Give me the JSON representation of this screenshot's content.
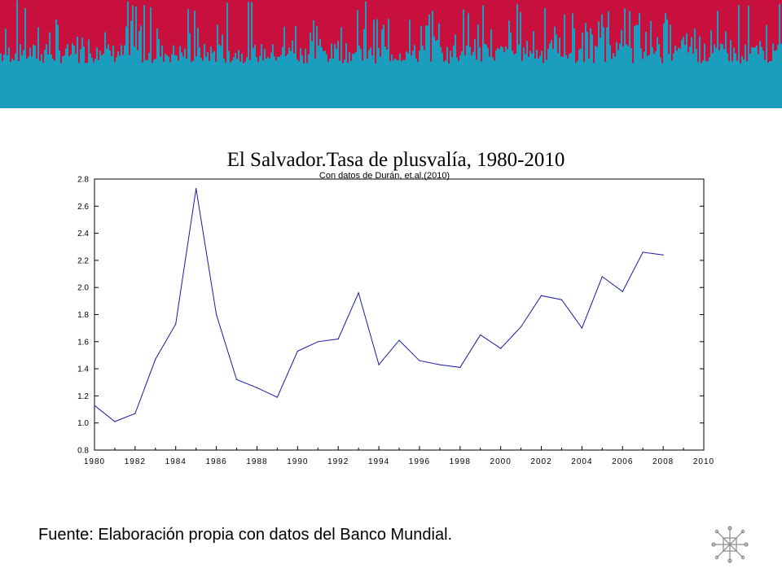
{
  "colors": {
    "banner_red": "#c8103e",
    "banner_teal": "#1b9dbd",
    "series_line": "#1a1a9c",
    "frame": "#000000",
    "logo": "#8a8a8a"
  },
  "logo": {
    "icon": "compass-logo-icon"
  },
  "footer": {
    "text": "Fuente: Elaboración propia con datos del Banco Mundial."
  },
  "chart_data": {
    "type": "line",
    "title": "El Salvador.Tasa de plusvalía, 1980-2010",
    "subtitle": "Con datos de Durán, et.al.(2010)",
    "xlabel": "",
    "ylabel": "",
    "xlim": [
      1980,
      2010
    ],
    "ylim": [
      0.8,
      2.8
    ],
    "x_ticks": [
      1980,
      1982,
      1984,
      1986,
      1988,
      1990,
      1992,
      1994,
      1996,
      1998,
      2000,
      2002,
      2004,
      2006,
      2008,
      2010
    ],
    "y_ticks": [
      "0.8",
      "1.0",
      "1.2",
      "1.4",
      "1.6",
      "1.8",
      "2.0",
      "2.2",
      "2.4",
      "2.6",
      "2.8"
    ],
    "grid": false,
    "legend": "none",
    "x": [
      1980,
      1981,
      1982,
      1983,
      1984,
      1985,
      1986,
      1987,
      1988,
      1989,
      1990,
      1991,
      1992,
      1993,
      1994,
      1995,
      1996,
      1997,
      1998,
      1999,
      2000,
      2001,
      2002,
      2003,
      2004,
      2005,
      2006,
      2007,
      2008
    ],
    "values": [
      1.13,
      1.01,
      1.07,
      1.47,
      1.73,
      2.73,
      1.8,
      1.32,
      1.26,
      1.19,
      1.53,
      1.6,
      1.62,
      1.96,
      1.43,
      1.61,
      1.46,
      1.43,
      1.41,
      1.65,
      1.55,
      1.71,
      1.94,
      1.91,
      1.7,
      2.08,
      1.97,
      2.26,
      2.24
    ]
  }
}
